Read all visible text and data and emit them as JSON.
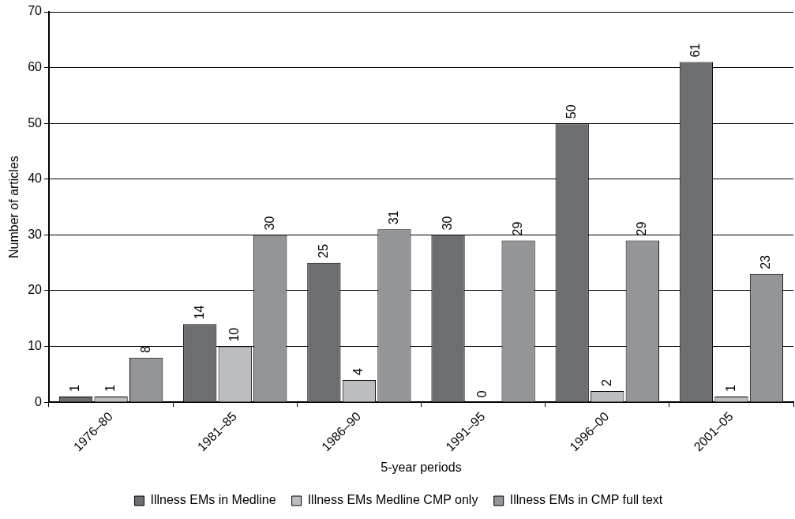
{
  "chart_data": {
    "type": "bar",
    "xlabel": "5-year periods",
    "ylabel": "Number of articles",
    "categories": [
      "1976–80",
      "1981–85",
      "1986–90",
      "1991–95",
      "1996–00",
      "2001–05"
    ],
    "series": [
      {
        "name": "Illness EMs in Medline",
        "color": "#6d6e71",
        "values": [
          1,
          14,
          25,
          30,
          50,
          61
        ]
      },
      {
        "name": "Illness EMs Medline CMP only",
        "color": "#bcbdc0",
        "values": [
          1,
          10,
          4,
          0,
          2,
          1
        ]
      },
      {
        "name": "Illness EMs in CMP full text",
        "color": "#939598",
        "values": [
          8,
          30,
          31,
          29,
          29,
          23
        ]
      }
    ],
    "ylim": [
      0,
      70
    ],
    "yticks": [
      0,
      10,
      20,
      30,
      40,
      50,
      60,
      70
    ],
    "grid": "y",
    "legend": "bottom",
    "data_labels": true
  }
}
